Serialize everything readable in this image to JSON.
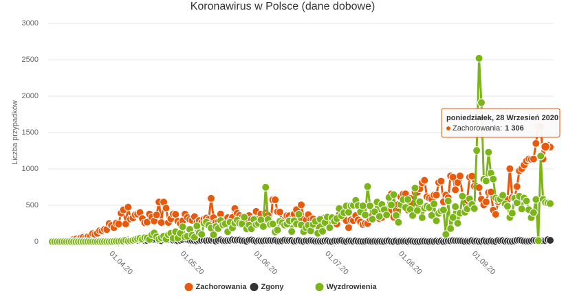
{
  "chart_data": {
    "type": "line",
    "title": "Koronawirus w Polsce (dane dobowe)",
    "y_label": "Liczba przypadków",
    "ylim": [
      0,
      3000
    ],
    "yticks": [
      0,
      500,
      1000,
      1500,
      2000,
      2500,
      3000
    ],
    "grid": true,
    "legend": "bottom",
    "categories": [
      "04.03.20",
      "05.03.20",
      "06.03.20",
      "07.03.20",
      "08.03.20",
      "09.03.20",
      "10.03.20",
      "11.03.20",
      "12.03.20",
      "13.03.20",
      "14.03.20",
      "15.03.20",
      "16.03.20",
      "17.03.20",
      "18.03.20",
      "19.03.20",
      "20.03.20",
      "21.03.20",
      "22.03.20",
      "23.03.20",
      "24.03.20",
      "25.03.20",
      "26.03.20",
      "27.03.20",
      "28.03.20",
      "29.03.20",
      "30.03.20",
      "31.03.20",
      "01.04.20",
      "02.04.20",
      "03.04.20",
      "04.04.20",
      "05.04.20",
      "06.04.20",
      "07.04.20",
      "08.04.20",
      "09.04.20",
      "10.04.20",
      "11.04.20",
      "12.04.20",
      "13.04.20",
      "14.04.20",
      "15.04.20",
      "16.04.20",
      "17.04.20",
      "18.04.20",
      "19.04.20",
      "20.04.20",
      "21.04.20",
      "22.04.20",
      "23.04.20",
      "24.04.20",
      "25.04.20",
      "26.04.20",
      "27.04.20",
      "28.04.20",
      "29.04.20",
      "30.04.20",
      "01.05.20",
      "02.05.20",
      "03.05.20",
      "04.05.20",
      "05.05.20",
      "06.05.20",
      "07.05.20",
      "08.05.20",
      "09.05.20",
      "10.05.20",
      "11.05.20",
      "12.05.20",
      "13.05.20",
      "14.05.20",
      "15.05.20",
      "16.05.20",
      "17.05.20",
      "18.05.20",
      "19.05.20",
      "20.05.20",
      "21.05.20",
      "22.05.20",
      "23.05.20",
      "24.05.20",
      "25.05.20",
      "26.05.20",
      "27.05.20",
      "28.05.20",
      "29.05.20",
      "30.05.20",
      "31.05.20",
      "01.06.20",
      "02.06.20",
      "03.06.20",
      "04.06.20",
      "05.06.20",
      "06.06.20",
      "07.06.20",
      "08.06.20",
      "09.06.20",
      "10.06.20",
      "11.06.20",
      "12.06.20",
      "13.06.20",
      "14.06.20",
      "15.06.20",
      "16.06.20",
      "17.06.20",
      "18.06.20",
      "19.06.20",
      "20.06.20",
      "21.06.20",
      "22.06.20",
      "23.06.20",
      "24.06.20",
      "25.06.20",
      "26.06.20",
      "27.06.20",
      "28.06.20",
      "29.06.20",
      "30.06.20",
      "01.07.20",
      "02.07.20",
      "03.07.20",
      "04.07.20",
      "05.07.20",
      "06.07.20",
      "07.07.20",
      "08.07.20",
      "09.07.20",
      "10.07.20",
      "11.07.20",
      "12.07.20",
      "13.07.20",
      "14.07.20",
      "15.07.20",
      "16.07.20",
      "17.07.20",
      "18.07.20",
      "19.07.20",
      "20.07.20",
      "21.07.20",
      "22.07.20",
      "23.07.20",
      "24.07.20",
      "25.07.20",
      "26.07.20",
      "27.07.20",
      "28.07.20",
      "29.07.20",
      "30.07.20",
      "31.07.20",
      "01.08.20",
      "02.08.20",
      "03.08.20",
      "04.08.20",
      "05.08.20",
      "06.08.20",
      "07.08.20",
      "08.08.20",
      "09.08.20",
      "10.08.20",
      "11.08.20",
      "12.08.20",
      "13.08.20",
      "14.08.20",
      "15.08.20",
      "16.08.20",
      "17.08.20",
      "18.08.20",
      "19.08.20",
      "20.08.20",
      "21.08.20",
      "22.08.20",
      "23.08.20",
      "24.08.20",
      "25.08.20",
      "26.08.20",
      "27.08.20",
      "28.08.20",
      "29.08.20",
      "30.08.20",
      "31.08.20",
      "01.09.20",
      "02.09.20",
      "03.09.20",
      "04.09.20",
      "05.09.20",
      "06.09.20",
      "07.09.20",
      "08.09.20",
      "09.09.20",
      "10.09.20",
      "11.09.20",
      "12.09.20",
      "13.09.20",
      "14.09.20",
      "15.09.20",
      "16.09.20",
      "17.09.20",
      "18.09.20",
      "19.09.20",
      "20.09.20",
      "21.09.20",
      "22.09.20",
      "23.09.20",
      "24.09.20",
      "25.09.20",
      "26.09.20",
      "27.09.20",
      "28.09.20",
      "29.09.20",
      "30.09.20"
    ],
    "xticks": [
      "01.04.20",
      "01.05.20",
      "01.06.20",
      "01.07.20",
      "01.08.20",
      "01.09.20"
    ],
    "series": [
      {
        "name": "Zachorowania",
        "color": "#e8590c",
        "values": [
          1,
          0,
          4,
          1,
          5,
          6,
          5,
          5,
          17,
          32,
          36,
          21,
          52,
          61,
          49,
          68,
          70,
          111,
          98,
          115,
          152,
          150,
          170,
          168,
          249,
          224,
          193,
          256,
          243,
          392,
          437,
          244,
          475,
          311,
          325,
          370,
          380,
          401,
          318,
          260,
          268,
          380,
          336,
          285,
          367,
          545,
          263,
          545,
          461,
          263,
          316,
          381,
          376,
          282,
          250,
          286,
          379,
          333,
          304,
          293,
          344,
          264,
          291,
          263,
          310,
          325,
          307,
          595,
          330,
          265,
          271,
          380,
          292,
          282,
          330,
          288,
          334,
          456,
          390,
          360,
          333,
          295,
          265,
          359,
          305,
          292,
          416,
          315,
          380,
          292,
          396,
          361,
          230,
          576,
          575,
          412,
          407,
          282,
          302,
          359,
          357,
          311,
          378,
          440,
          298,
          506,
          308,
          297,
          371,
          300,
          314,
          262,
          233,
          288,
          260,
          329,
          299,
          260,
          231,
          300,
          243,
          371,
          359,
          326,
          289,
          193,
          299,
          290,
          358,
          299,
          271,
          236,
          252,
          249,
          312,
          358,
          334,
          337,
          316,
          331,
          405,
          376,
          418,
          657,
          337,
          443,
          512,
          615,
          657,
          658,
          436,
          594,
          525,
          680,
          680,
          726,
          809,
          843,
          618,
          599,
          587,
          640,
          642,
          813,
          832,
          548,
          640,
          604,
          903,
          887,
          713,
          811,
          903,
          631,
          550,
          567,
          887,
          900,
          762,
          757,
          744,
          584,
          506,
          546,
          677,
          683,
          434,
          376,
          550,
          601,
          597,
          599,
          581,
          1002,
          607,
          600,
          757,
          974,
          1002,
          1053,
          1108,
          1136,
          1132,
          1136,
          1350,
          1587,
          1584,
          1136,
          1306,
          1326,
          1300
        ]
      },
      {
        "name": "Zgony",
        "color": "#333333",
        "values": [
          0,
          0,
          0,
          0,
          0,
          0,
          0,
          0,
          1,
          2,
          3,
          0,
          0,
          1,
          3,
          2,
          1,
          4,
          1,
          5,
          3,
          5,
          9,
          6,
          5,
          2,
          11,
          17,
          14,
          16,
          20,
          15,
          25,
          20,
          19,
          26,
          19,
          30,
          35,
          14,
          17,
          26,
          28,
          28,
          29,
          20,
          13,
          30,
          30,
          28,
          34,
          21,
          22,
          12,
          18,
          26,
          35,
          27,
          20,
          16,
          13,
          11,
          18,
          20,
          23,
          13,
          18,
          21,
          29,
          8,
          18,
          25,
          14,
          13,
          16,
          18,
          27,
          22,
          22,
          23,
          15,
          13,
          5,
          21,
          24,
          16,
          7,
          13,
          11,
          11,
          16,
          14,
          17,
          13,
          18,
          8,
          8,
          12,
          22,
          16,
          17,
          18,
          5,
          11,
          18,
          10,
          4,
          13,
          11,
          16,
          12,
          6,
          7,
          6,
          6,
          12,
          14,
          5,
          2,
          12,
          10,
          13,
          17,
          7,
          3,
          11,
          10,
          5,
          13,
          5,
          6,
          3,
          5,
          11,
          6,
          4,
          7,
          3,
          6,
          4,
          3,
          9,
          13,
          5,
          2,
          10,
          1,
          8,
          6,
          7,
          2,
          11,
          6,
          1,
          2,
          1,
          7,
          8,
          4,
          2,
          6,
          3,
          9,
          4,
          9,
          1,
          7,
          14,
          10,
          17,
          13,
          13,
          12,
          9,
          3,
          7,
          7,
          15,
          7,
          10,
          3,
          5,
          14,
          5,
          6,
          12,
          5,
          3,
          17,
          13,
          16,
          6,
          9,
          4,
          4,
          10,
          19,
          21,
          17,
          8,
          6,
          7,
          11,
          20,
          16,
          13,
          12,
          13,
          13,
          27,
          19
        ]
      },
      {
        "name": "Wyzdrowienia",
        "color": "#7cb518",
        "values": [
          0,
          0,
          0,
          0,
          0,
          0,
          0,
          0,
          0,
          0,
          0,
          0,
          0,
          0,
          0,
          1,
          0,
          0,
          0,
          0,
          0,
          0,
          1,
          0,
          0,
          1,
          3,
          5,
          5,
          10,
          6,
          18,
          8,
          13,
          19,
          30,
          39,
          47,
          34,
          55,
          51,
          30,
          95,
          120,
          68,
          36,
          55,
          76,
          36,
          94,
          116,
          48,
          137,
          50,
          115,
          205,
          63,
          75,
          170,
          90,
          60,
          216,
          120,
          100,
          254,
          270,
          226,
          187,
          96,
          207,
          181,
          291,
          232,
          246,
          137,
          267,
          190,
          255,
          295,
          253,
          245,
          336,
          177,
          230,
          177,
          305,
          236,
          250,
          300,
          209,
          748,
          306,
          237,
          243,
          135,
          159,
          280,
          261,
          229,
          243,
          287,
          140,
          289,
          244,
          377,
          230,
          137,
          191,
          225,
          149,
          238,
          281,
          115,
          308,
          143,
          264,
          338,
          193,
          330,
          283,
          318,
          456,
          356,
          397,
          490,
          405,
          494,
          501,
          568,
          496,
          410,
          493,
          367,
          758,
          493,
          309,
          411,
          545,
          348,
          511,
          440,
          368,
          607,
          505,
          647,
          361,
          266,
          510,
          578,
          470,
          580,
          443,
          360,
          737,
          428,
          548,
          330,
          461,
          488,
          470,
          361,
          520,
          288,
          390,
          422,
          436,
          100,
          560,
          180,
          333,
          481,
          254,
          391,
          625,
          405,
          451,
          588,
          512,
          455,
          1253,
          2520,
          1911,
          858,
          835,
          1229,
          942,
          860,
          600,
          578,
          584,
          637,
          519,
          487,
          333,
          391,
          597,
          535,
          624,
          450,
          600,
          560,
          440,
          330,
          400,
          580,
          15,
          1176,
          580,
          540,
          532,
          525
        ]
      }
    ],
    "tooltip": {
      "title": "poniedziałek, 28 Wrzesień 2020",
      "label": "Zachorowania:",
      "value": 1306,
      "value_label": "1 306"
    }
  }
}
